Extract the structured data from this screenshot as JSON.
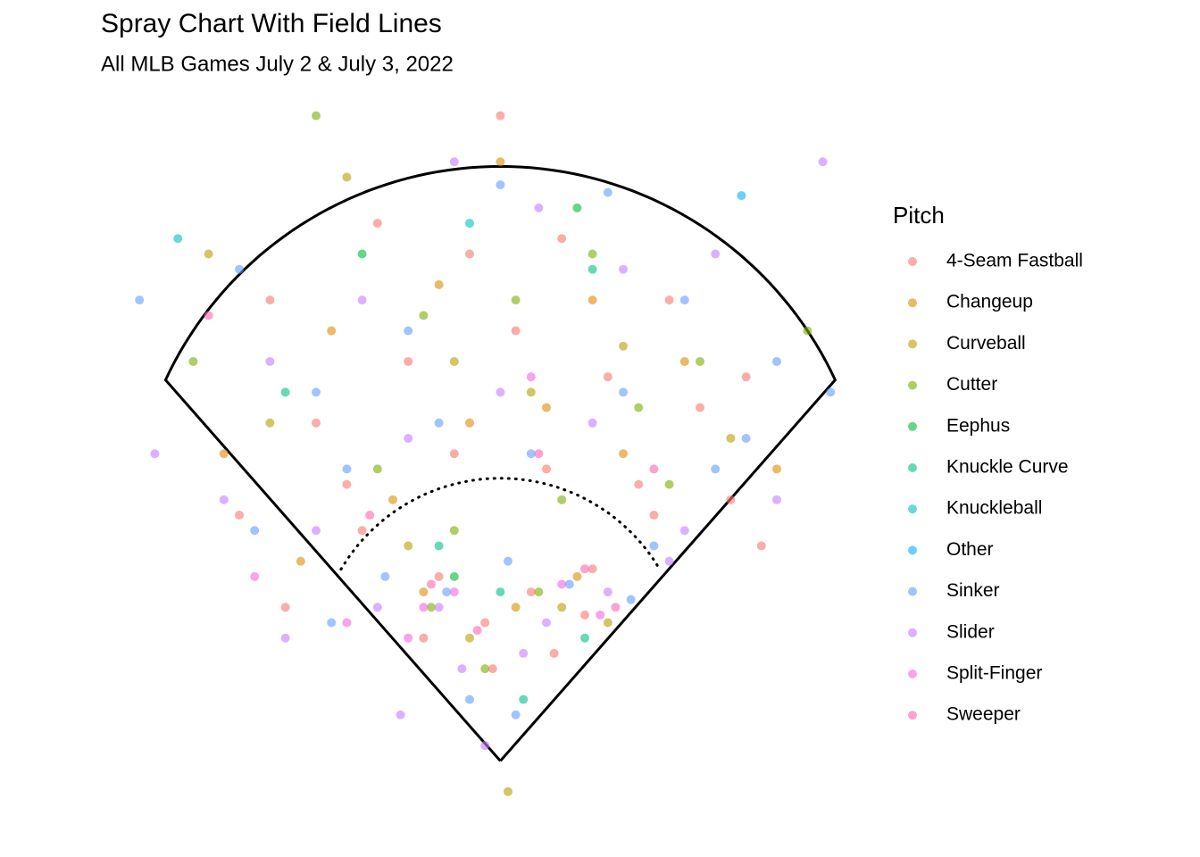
{
  "chart_data": {
    "type": "scatter",
    "title": "Spray Chart With Field Lines",
    "subtitle": "All MLB Games July 2 & July 3, 2022",
    "legend_title": "Pitch",
    "legend": "right",
    "xlim": [
      -245,
      230
    ],
    "ylim": [
      -30,
      425
    ],
    "series": [
      {
        "name": "4-Seam Fastball",
        "color": "#F8766D",
        "x": [
          -150,
          -80,
          -20,
          40,
          110,
          160,
          -120,
          -60,
          10,
          70,
          130,
          -170,
          -100,
          -30,
          30,
          90,
          150,
          -40,
          20,
          60,
          -50,
          -10,
          35,
          55,
          -90,
          100,
          -140,
          170,
          0,
          -5
        ],
        "values": [
          300,
          350,
          330,
          340,
          300,
          250,
          220,
          260,
          280,
          250,
          230,
          160,
          180,
          200,
          190,
          180,
          170,
          120,
          110,
          125,
          80,
          90,
          70,
          95,
          150,
          160,
          100,
          140,
          420,
          60
        ]
      },
      {
        "name": "Changeup",
        "color": "#DE8C00",
        "x": [
          -180,
          -110,
          -40,
          0,
          60,
          120,
          180,
          -70,
          -20,
          30,
          80,
          -50,
          10,
          50,
          -130
        ],
        "values": [
          200,
          280,
          310,
          390,
          300,
          260,
          190,
          170,
          220,
          230,
          200,
          110,
          100,
          120,
          130
        ]
      },
      {
        "name": "Curveball",
        "color": "#B79F00",
        "x": [
          -190,
          -100,
          -30,
          20,
          80,
          150,
          -60,
          40,
          -20,
          70,
          5,
          -150
        ],
        "values": [
          330,
          380,
          260,
          240,
          270,
          210,
          140,
          100,
          80,
          90,
          -20,
          220
        ]
      },
      {
        "name": "Cutter",
        "color": "#7CAE00",
        "x": [
          -200,
          -120,
          -50,
          10,
          60,
          130,
          200,
          -80,
          -30,
          40,
          90,
          -45,
          25,
          -10,
          110
        ],
        "values": [
          260,
          420,
          290,
          300,
          330,
          260,
          280,
          190,
          150,
          170,
          230,
          100,
          110,
          60,
          180
        ]
      },
      {
        "name": "Eephus",
        "color": "#00BA38",
        "x": [
          -30,
          50,
          -90
        ],
        "values": [
          120,
          360,
          330
        ]
      },
      {
        "name": "Knuckle Curve",
        "color": "#00C08B",
        "x": [
          -40,
          60,
          15,
          -140,
          55,
          0
        ],
        "values": [
          140,
          320,
          40,
          240,
          80,
          110
        ]
      },
      {
        "name": "Knuckleball",
        "color": "#00BFC4",
        "x": [
          -210,
          -20
        ],
        "values": [
          340,
          350
        ]
      },
      {
        "name": "Other",
        "color": "#00B4F0",
        "x": [
          157
        ],
        "values": [
          368
        ]
      },
      {
        "name": "Sinker",
        "color": "#619CFF",
        "x": [
          -235,
          -170,
          -120,
          -60,
          0,
          70,
          120,
          180,
          215,
          -160,
          -100,
          -40,
          20,
          80,
          140,
          -75,
          -35,
          5,
          45,
          85,
          -20,
          10,
          -110,
          100,
          160
        ],
        "values": [
          300,
          320,
          240,
          280,
          375,
          370,
          300,
          260,
          240,
          150,
          190,
          220,
          200,
          240,
          190,
          120,
          110,
          130,
          115,
          105,
          40,
          30,
          90,
          140,
          210
        ]
      },
      {
        "name": "Slider",
        "color": "#C77CFF",
        "x": [
          -225,
          -150,
          -90,
          -30,
          25,
          80,
          140,
          210,
          -180,
          -120,
          -60,
          0,
          60,
          120,
          180,
          -80,
          -40,
          30,
          70,
          -25,
          15,
          -65,
          110,
          -10,
          -140
        ],
        "values": [
          200,
          260,
          300,
          390,
          360,
          320,
          330,
          390,
          170,
          150,
          210,
          240,
          220,
          150,
          170,
          100,
          100,
          90,
          110,
          60,
          70,
          30,
          130,
          10,
          80
        ]
      },
      {
        "name": "Split-Finger",
        "color": "#F564E3",
        "x": [
          -50,
          -30,
          40,
          65,
          -160,
          20,
          -100,
          -60
        ],
        "values": [
          100,
          110,
          115,
          95,
          120,
          250,
          90,
          80
        ]
      },
      {
        "name": "Sweeper",
        "color": "#FF64B0",
        "x": [
          -45,
          -15,
          55,
          75,
          -85,
          100,
          -190,
          25
        ],
        "values": [
          115,
          85,
          125,
          100,
          160,
          190,
          290,
          200
        ]
      }
    ]
  }
}
